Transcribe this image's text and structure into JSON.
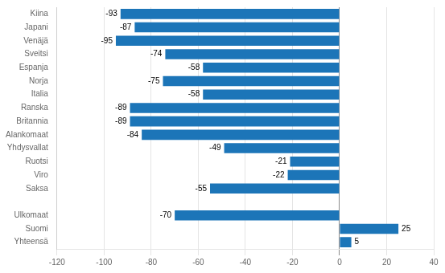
{
  "chart_data": {
    "type": "bar",
    "orientation": "horizontal",
    "categories": [
      "Kiina",
      "Japani",
      "Venäjä",
      "Sveitsi",
      "Espanja",
      "Norja",
      "Italia",
      "Ranska",
      "Britannia",
      "Alankomaat",
      "Yhdysvallat",
      "Ruotsi",
      "Viro",
      "Saksa",
      null,
      "Ulkomaat",
      "Suomi",
      "Yhteensä"
    ],
    "values": [
      -93,
      -87,
      -95,
      -74,
      -58,
      -75,
      -58,
      -89,
      -89,
      -84,
      -49,
      -21,
      -22,
      -55,
      null,
      -70,
      25,
      5
    ],
    "color": "#1c75b8",
    "xlim": [
      -120,
      40
    ],
    "xticks": [
      -120,
      -100,
      -80,
      -60,
      -40,
      -20,
      0,
      20,
      40
    ],
    "grid": true,
    "data_labels": true
  }
}
